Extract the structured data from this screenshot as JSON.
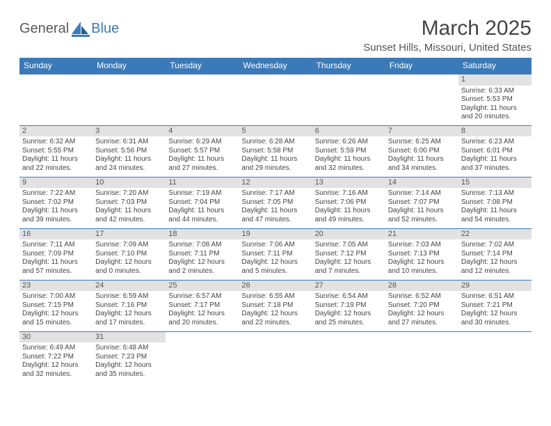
{
  "brand": {
    "part1": "General",
    "part2": "Blue"
  },
  "title": "March 2025",
  "location": "Sunset Hills, Missouri, United States",
  "colors": {
    "accent": "#3b7ab8",
    "header_text": "#ffffff",
    "daybar": "#e2e2e2",
    "text": "#444444",
    "logo_gray": "#5a5a5a",
    "background": "#ffffff"
  },
  "dayHeaders": [
    "Sunday",
    "Monday",
    "Tuesday",
    "Wednesday",
    "Thursday",
    "Friday",
    "Saturday"
  ],
  "weeks": [
    [
      {
        "empty": true
      },
      {
        "empty": true
      },
      {
        "empty": true
      },
      {
        "empty": true
      },
      {
        "empty": true
      },
      {
        "empty": true
      },
      {
        "n": "1",
        "sr": "6:33 AM",
        "ss": "5:53 PM",
        "dl": "11 hours and 20 minutes."
      }
    ],
    [
      {
        "n": "2",
        "sr": "6:32 AM",
        "ss": "5:55 PM",
        "dl": "11 hours and 22 minutes."
      },
      {
        "n": "3",
        "sr": "6:31 AM",
        "ss": "5:56 PM",
        "dl": "11 hours and 24 minutes."
      },
      {
        "n": "4",
        "sr": "6:29 AM",
        "ss": "5:57 PM",
        "dl": "11 hours and 27 minutes."
      },
      {
        "n": "5",
        "sr": "6:28 AM",
        "ss": "5:58 PM",
        "dl": "11 hours and 29 minutes."
      },
      {
        "n": "6",
        "sr": "6:26 AM",
        "ss": "5:59 PM",
        "dl": "11 hours and 32 minutes."
      },
      {
        "n": "7",
        "sr": "6:25 AM",
        "ss": "6:00 PM",
        "dl": "11 hours and 34 minutes."
      },
      {
        "n": "8",
        "sr": "6:23 AM",
        "ss": "6:01 PM",
        "dl": "11 hours and 37 minutes."
      }
    ],
    [
      {
        "n": "9",
        "sr": "7:22 AM",
        "ss": "7:02 PM",
        "dl": "11 hours and 39 minutes."
      },
      {
        "n": "10",
        "sr": "7:20 AM",
        "ss": "7:03 PM",
        "dl": "11 hours and 42 minutes."
      },
      {
        "n": "11",
        "sr": "7:19 AM",
        "ss": "7:04 PM",
        "dl": "11 hours and 44 minutes."
      },
      {
        "n": "12",
        "sr": "7:17 AM",
        "ss": "7:05 PM",
        "dl": "11 hours and 47 minutes."
      },
      {
        "n": "13",
        "sr": "7:16 AM",
        "ss": "7:06 PM",
        "dl": "11 hours and 49 minutes."
      },
      {
        "n": "14",
        "sr": "7:14 AM",
        "ss": "7:07 PM",
        "dl": "11 hours and 52 minutes."
      },
      {
        "n": "15",
        "sr": "7:13 AM",
        "ss": "7:08 PM",
        "dl": "11 hours and 54 minutes."
      }
    ],
    [
      {
        "n": "16",
        "sr": "7:11 AM",
        "ss": "7:09 PM",
        "dl": "11 hours and 57 minutes."
      },
      {
        "n": "17",
        "sr": "7:09 AM",
        "ss": "7:10 PM",
        "dl": "12 hours and 0 minutes."
      },
      {
        "n": "18",
        "sr": "7:08 AM",
        "ss": "7:11 PM",
        "dl": "12 hours and 2 minutes."
      },
      {
        "n": "19",
        "sr": "7:06 AM",
        "ss": "7:11 PM",
        "dl": "12 hours and 5 minutes."
      },
      {
        "n": "20",
        "sr": "7:05 AM",
        "ss": "7:12 PM",
        "dl": "12 hours and 7 minutes."
      },
      {
        "n": "21",
        "sr": "7:03 AM",
        "ss": "7:13 PM",
        "dl": "12 hours and 10 minutes."
      },
      {
        "n": "22",
        "sr": "7:02 AM",
        "ss": "7:14 PM",
        "dl": "12 hours and 12 minutes."
      }
    ],
    [
      {
        "n": "23",
        "sr": "7:00 AM",
        "ss": "7:15 PM",
        "dl": "12 hours and 15 minutes."
      },
      {
        "n": "24",
        "sr": "6:59 AM",
        "ss": "7:16 PM",
        "dl": "12 hours and 17 minutes."
      },
      {
        "n": "25",
        "sr": "6:57 AM",
        "ss": "7:17 PM",
        "dl": "12 hours and 20 minutes."
      },
      {
        "n": "26",
        "sr": "6:55 AM",
        "ss": "7:18 PM",
        "dl": "12 hours and 22 minutes."
      },
      {
        "n": "27",
        "sr": "6:54 AM",
        "ss": "7:19 PM",
        "dl": "12 hours and 25 minutes."
      },
      {
        "n": "28",
        "sr": "6:52 AM",
        "ss": "7:20 PM",
        "dl": "12 hours and 27 minutes."
      },
      {
        "n": "29",
        "sr": "6:51 AM",
        "ss": "7:21 PM",
        "dl": "12 hours and 30 minutes."
      }
    ],
    [
      {
        "n": "30",
        "sr": "6:49 AM",
        "ss": "7:22 PM",
        "dl": "12 hours and 32 minutes."
      },
      {
        "n": "31",
        "sr": "6:48 AM",
        "ss": "7:23 PM",
        "dl": "12 hours and 35 minutes."
      },
      {
        "empty": true
      },
      {
        "empty": true
      },
      {
        "empty": true
      },
      {
        "empty": true
      },
      {
        "empty": true
      }
    ]
  ],
  "labels": {
    "sunrise": "Sunrise:",
    "sunset": "Sunset:",
    "daylight": "Daylight:"
  },
  "typography": {
    "title_fontsize": 30,
    "location_fontsize": 15,
    "header_fontsize": 12,
    "cell_fontsize": 10
  }
}
